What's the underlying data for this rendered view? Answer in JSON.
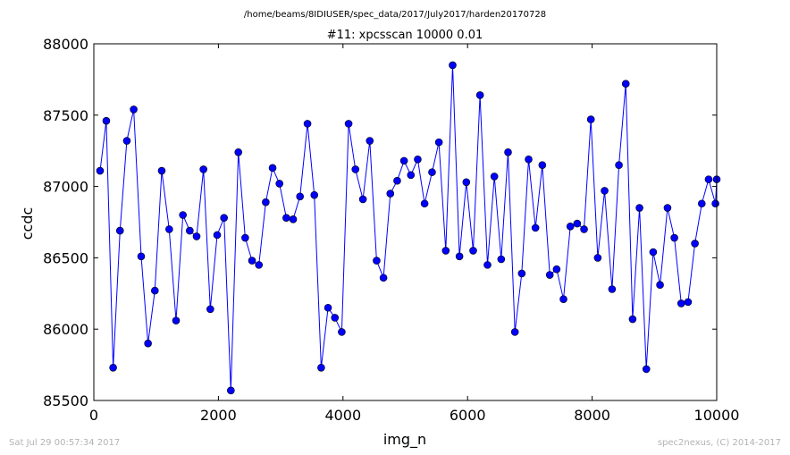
{
  "header": {
    "path": "/home/beams/8IDIUSER/spec_data/2017/July2017/harden20170728"
  },
  "footer": {
    "timestamp": "Sat Jul 29 00:57:34 2017",
    "credit": "spec2nexus, (C) 2014-2017"
  },
  "colors": {
    "series": "#0000ff",
    "axes": "#000000",
    "footer": "#b3b3b3"
  },
  "chart_data": {
    "type": "line",
    "title": "#11: xpcsscan 10000 0.01",
    "xlabel": "img_n",
    "ylabel": "ccdc",
    "xlim": [
      0,
      10000
    ],
    "ylim": [
      85500,
      88000
    ],
    "xticks": [
      "0",
      "2000",
      "4000",
      "6000",
      "8000",
      "10000"
    ],
    "yticks": [
      "85500",
      "86000",
      "86500",
      "87000",
      "87500",
      "88000"
    ],
    "grid": false,
    "marker": "circle",
    "series": [
      {
        "x": [
          100,
          200,
          310,
          420,
          530,
          640,
          760,
          870,
          980,
          1090,
          1210,
          1320,
          1430,
          1540,
          1650,
          1760,
          1870,
          1980,
          2090,
          2200,
          2320,
          2430,
          2540,
          2650,
          2760,
          2870,
          2980,
          3090,
          3200,
          3310,
          3430,
          3540,
          3650,
          3760,
          3870,
          3980,
          4090,
          4200,
          4320,
          4430,
          4540,
          4650,
          4760,
          4870,
          4980,
          5090,
          5200,
          5310,
          5430,
          5540,
          5650,
          5760,
          5870,
          5980,
          6090,
          6200,
          6320,
          6430,
          6540,
          6650,
          6760,
          6870,
          6980,
          7090,
          7200,
          7320,
          7430,
          7540,
          7650,
          7760,
          7870,
          7980,
          8090,
          8200,
          8320,
          8430,
          8540,
          8650,
          8760,
          8870,
          8980,
          9090,
          9210,
          9320,
          9430,
          9540,
          9650,
          9760,
          9870,
          9980,
          10000
        ],
        "y": [
          87110,
          87460,
          85730,
          86690,
          87320,
          87540,
          86510,
          85900,
          86270,
          87110,
          86700,
          86060,
          86800,
          86690,
          86650,
          87120,
          86140,
          86660,
          86780,
          85570,
          87240,
          86640,
          86480,
          86450,
          86890,
          87130,
          87020,
          86780,
          86770,
          86930,
          87440,
          86940,
          85730,
          86150,
          86080,
          85980,
          87440,
          87120,
          86910,
          87320,
          86480,
          86360,
          86950,
          87040,
          87180,
          87080,
          87190,
          86880,
          87100,
          87310,
          86550,
          87850,
          86510,
          87030,
          86550,
          87640,
          86450,
          87070,
          86490,
          87240,
          85980,
          86390,
          87190,
          86710,
          87150,
          86380,
          86420,
          86210,
          86720,
          86740,
          86700,
          87470,
          86500,
          86970,
          86280,
          87150,
          87720,
          86070,
          86850,
          85720,
          86540,
          86310,
          86850,
          86640,
          86180,
          86190,
          86600,
          86880,
          87050,
          86880,
          87050
        ]
      }
    ]
  }
}
